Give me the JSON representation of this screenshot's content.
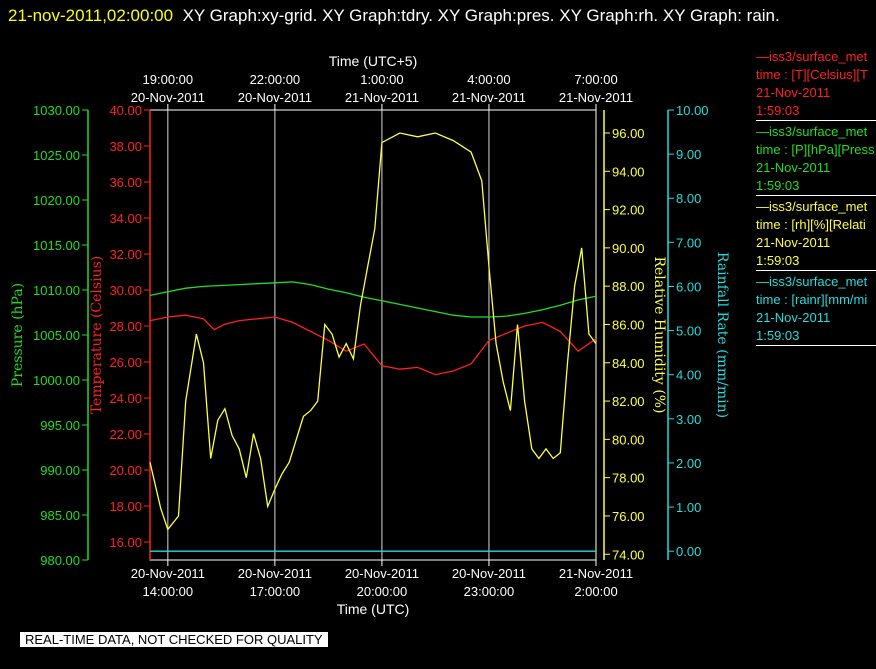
{
  "title": {
    "datetime": "21-nov-2011,02:00:00",
    "graphs": "XY Graph:xy-grid.  XY Graph:tdry.  XY Graph:pres.  XY Graph:rh.  XY Graph: rain."
  },
  "qa_note": "REAL-TIME DATA, NOT CHECKED FOR QUALITY",
  "legend": [
    {
      "line1": "—iss3/surface_met",
      "line2": "time : [T][Celsius][T",
      "line3": "21-Nov-2011",
      "line4": "1:59:03",
      "color": "#ff2020"
    },
    {
      "line1": "—iss3/surface_met",
      "line2": "time : [P][hPa][Press",
      "line3": "21-Nov-2011",
      "line4": "1:59:03",
      "color": "#22dd22"
    },
    {
      "line1": "—iss3/surface_met",
      "line2": "time : [rh][%][Relati",
      "line3": "21-Nov-2011",
      "line4": "1:59:03",
      "color": "#ffff40"
    },
    {
      "line1": "—iss3/surface_met",
      "line2": "time : [rainr][mm/mi",
      "line3": "21-Nov-2011",
      "line4": "1:59:03",
      "color": "#22dddd"
    }
  ],
  "chart_data": {
    "type": "line",
    "x_bottom_label": "Time (UTC)",
    "x_top_label": "Time (UTC+5)",
    "x_range_hours": [
      13.5,
      26.0
    ],
    "grid": "vertical lines at bottom ticks",
    "bottom_ticks": [
      {
        "h": 14,
        "date": "20-Nov-2011",
        "time": "14:00:00"
      },
      {
        "h": 17,
        "date": "20-Nov-2011",
        "time": "17:00:00"
      },
      {
        "h": 20,
        "date": "20-Nov-2011",
        "time": "20:00:00"
      },
      {
        "h": 23,
        "date": "20-Nov-2011",
        "time": "23:00:00"
      },
      {
        "h": 26,
        "date": "21-Nov-2011",
        "time": "2:00:00"
      }
    ],
    "top_ticks": [
      {
        "h": 14,
        "time": "19:00:00",
        "date": "20-Nov-2011"
      },
      {
        "h": 17,
        "time": "22:00:00",
        "date": "20-Nov-2011"
      },
      {
        "h": 20,
        "time": "1:00:00",
        "date": "21-Nov-2011"
      },
      {
        "h": 23,
        "time": "4:00:00",
        "date": "21-Nov-2011"
      },
      {
        "h": 26,
        "time": "7:00:00",
        "date": "21-Nov-2011"
      }
    ],
    "axes": [
      {
        "id": "pres",
        "label": "Pressure (hPa)",
        "color": "#22dd22",
        "min": 980,
        "max": 1030,
        "ticks": [
          "980.00",
          "985.00",
          "990.00",
          "995.00",
          "1000.00",
          "1005.00",
          "1010.00",
          "1015.00",
          "1020.00",
          "1025.00",
          "1030.00"
        ]
      },
      {
        "id": "temp",
        "label": "Temperature (Celsius)",
        "color": "#ff2020",
        "min": 15,
        "max": 40,
        "ticks": [
          "16.00",
          "18.00",
          "20.00",
          "22.00",
          "24.00",
          "26.00",
          "28.00",
          "30.00",
          "32.00",
          "34.00",
          "36.00",
          "38.00",
          "40.00"
        ]
      },
      {
        "id": "rh",
        "label": "Relative Humidity (%)",
        "color": "#ffff40",
        "min": 73.7,
        "max": 97.2,
        "ticks": [
          "74.00",
          "76.00",
          "78.00",
          "80.00",
          "82.00",
          "84.00",
          "86.00",
          "88.00",
          "90.00",
          "92.00",
          "94.00",
          "96.00"
        ]
      },
      {
        "id": "rain",
        "label": "Rainfall Rate (mm/min)",
        "color": "#22dddd",
        "min": -0.2,
        "max": 10,
        "ticks": [
          "0.00",
          "1.00",
          "2.00",
          "3.00",
          "4.00",
          "5.00",
          "6.00",
          "7.00",
          "8.00",
          "9.00",
          "10.00"
        ]
      }
    ],
    "series": [
      {
        "name": "T",
        "axis": "temp",
        "color": "#ff2020",
        "x": [
          13.5,
          14.0,
          14.5,
          15.0,
          15.3,
          15.6,
          16.0,
          16.5,
          17.0,
          17.5,
          18.0,
          18.5,
          19.0,
          19.5,
          20.0,
          20.5,
          21.0,
          21.5,
          22.0,
          22.5,
          23.0,
          23.5,
          24.0,
          24.5,
          25.0,
          25.5,
          26.0
        ],
        "y": [
          28.3,
          28.5,
          28.6,
          28.4,
          27.8,
          28.1,
          28.3,
          28.4,
          28.5,
          28.2,
          27.7,
          27.2,
          26.6,
          27.0,
          25.8,
          25.6,
          25.7,
          25.3,
          25.5,
          25.9,
          27.2,
          27.6,
          28.0,
          28.2,
          27.7,
          26.6,
          27.3
        ]
      },
      {
        "name": "P",
        "axis": "pres",
        "color": "#22dd22",
        "x": [
          13.5,
          14.0,
          14.5,
          15.0,
          15.5,
          16.0,
          16.5,
          17.0,
          17.5,
          18.0,
          18.5,
          19.0,
          19.5,
          20.0,
          20.5,
          21.0,
          21.5,
          22.0,
          22.5,
          23.0,
          23.5,
          24.0,
          24.5,
          25.0,
          25.5,
          26.0
        ],
        "y": [
          1009.4,
          1009.8,
          1010.2,
          1010.4,
          1010.5,
          1010.6,
          1010.7,
          1010.8,
          1010.9,
          1010.6,
          1010.1,
          1009.7,
          1009.2,
          1008.8,
          1008.4,
          1008.0,
          1007.6,
          1007.2,
          1007.0,
          1007.0,
          1007.1,
          1007.4,
          1007.8,
          1008.3,
          1008.9,
          1009.3
        ]
      },
      {
        "name": "rh",
        "axis": "rh",
        "color": "#ffff40",
        "x": [
          13.5,
          13.8,
          14.0,
          14.3,
          14.5,
          14.8,
          15.0,
          15.2,
          15.4,
          15.6,
          15.8,
          16.0,
          16.2,
          16.4,
          16.6,
          16.8,
          17.0,
          17.2,
          17.4,
          17.6,
          17.8,
          18.0,
          18.2,
          18.4,
          18.6,
          18.8,
          19.0,
          19.2,
          19.4,
          19.6,
          19.8,
          20.0,
          20.5,
          21.0,
          21.5,
          22.0,
          22.5,
          22.8,
          23.0,
          23.2,
          23.4,
          23.6,
          23.8,
          24.0,
          24.2,
          24.4,
          24.6,
          24.8,
          25.0,
          25.2,
          25.4,
          25.6,
          25.8,
          26.0
        ],
        "y": [
          78.8,
          76.4,
          75.3,
          76.0,
          82.0,
          85.5,
          84.0,
          79.0,
          81.0,
          81.6,
          80.2,
          79.5,
          78.0,
          80.3,
          79.0,
          76.5,
          77.4,
          78.2,
          78.8,
          80.0,
          81.2,
          81.5,
          82.0,
          86.0,
          85.5,
          84.3,
          85.0,
          84.2,
          87.0,
          89.0,
          91.0,
          95.5,
          96.0,
          95.8,
          96.0,
          95.6,
          95.0,
          93.5,
          89.0,
          85.0,
          83.0,
          81.5,
          86.0,
          82.0,
          79.5,
          79.0,
          79.5,
          79.0,
          79.3,
          84.0,
          88.0,
          90.0,
          85.5,
          85.0
        ]
      },
      {
        "name": "rainr",
        "axis": "rain",
        "color": "#22dddd",
        "x": [
          13.5,
          26.0
        ],
        "y": [
          0.0,
          0.0
        ]
      }
    ]
  }
}
